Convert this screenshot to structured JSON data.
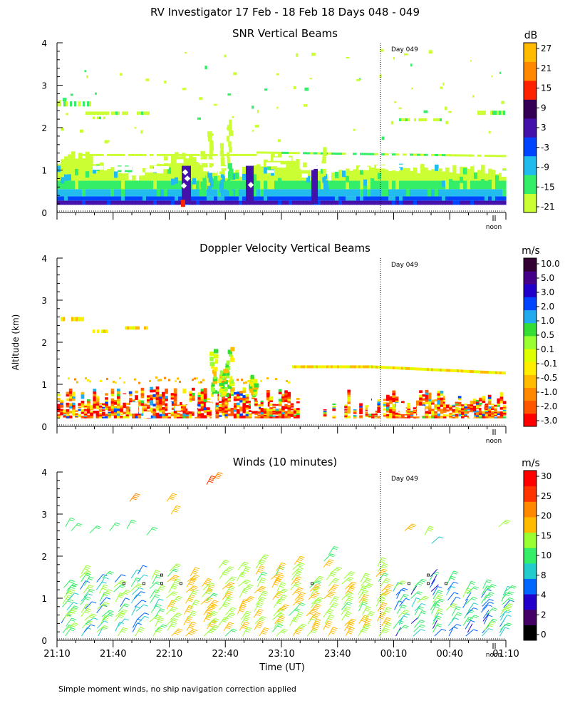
{
  "page": {
    "title": "RV Investigator  17 Feb - 18 Feb 18 Days 048 - 049",
    "ylabel": "Altitude (km)",
    "xlabel": "Time (UT)",
    "footnote": "Simple moment winds, no ship navigation correction applied",
    "day_marker": "Day 049",
    "noon_label": "noon"
  },
  "chart_data": [
    {
      "type": "heatmap",
      "title": "SNR Vertical Beams",
      "colorbar_unit": "dB",
      "colorbar_ticks": [
        "27",
        "21",
        "15",
        "9",
        "3",
        "-3",
        "-9",
        "-15",
        "-21"
      ],
      "y_ticks": [
        "0",
        "1",
        "2",
        "3",
        "4"
      ],
      "ylim": [
        0,
        4
      ]
    },
    {
      "type": "heatmap",
      "title": "Doppler Velocity Vertical Beams",
      "colorbar_unit": "m/s",
      "colorbar_ticks": [
        "10.0",
        "5.0",
        "3.0",
        "2.0",
        "1.0",
        "0.5",
        "0.1",
        "-0.1",
        "-0.5",
        "-1.0",
        "-2.0",
        "-3.0"
      ],
      "y_ticks": [
        "0",
        "1",
        "2",
        "3",
        "4"
      ],
      "ylim": [
        0,
        4
      ]
    },
    {
      "type": "scatter",
      "title": "Winds (10 minutes)",
      "colorbar_unit": "m/s",
      "colorbar_ticks": [
        "30",
        "25",
        "20",
        "15",
        "10",
        "8",
        "4",
        "2",
        "0"
      ],
      "y_ticks": [
        "0",
        "1",
        "2",
        "3",
        "4"
      ],
      "x_ticks": [
        "21:10",
        "21:40",
        "22:10",
        "22:40",
        "23:10",
        "23:40",
        "00:10",
        "00:40",
        "01:10"
      ],
      "ylim": [
        0,
        4
      ]
    }
  ],
  "colors": {
    "snr": [
      "#ccff33",
      "#33ee66",
      "#22bbee",
      "#0044ff",
      "#4411aa",
      "#330055",
      "#ff2200",
      "#ff8800",
      "#ffbb00"
    ],
    "doppler": [
      "#ff0000",
      "#ff5500",
      "#ff8800",
      "#ffbb00",
      "#ffee00",
      "#ddff00",
      "#99ff33",
      "#33dd33",
      "#22aaee",
      "#0044ff",
      "#2200cc",
      "#440088",
      "#330033"
    ],
    "wind": [
      "#000000",
      "#440066",
      "#2200cc",
      "#0066ff",
      "#22cccc",
      "#33ee66",
      "#99ff33",
      "#ffbb00",
      "#ff8800",
      "#ff3300",
      "#ff0000"
    ]
  }
}
